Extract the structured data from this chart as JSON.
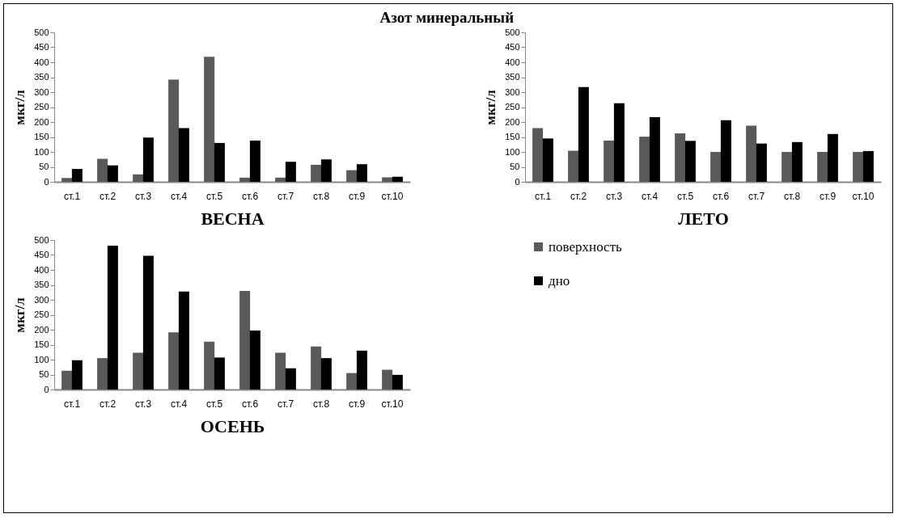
{
  "chart_data": [
    {
      "type": "bar",
      "title": "Азот минеральный",
      "xlabel": "ВЕСНА",
      "ylabel": "мкг/л",
      "categories": [
        "ст.1",
        "ст.2",
        "ст.3",
        "ст.4",
        "ст.5",
        "ст.6",
        "ст.7",
        "ст.8",
        "ст.9",
        "ст.10"
      ],
      "ylim": [
        0,
        500
      ],
      "yticks": [
        0,
        50,
        100,
        150,
        200,
        250,
        300,
        350,
        400,
        450,
        500
      ],
      "grid": false,
      "legend": false,
      "series": [
        {
          "color": "#595959",
          "values": [
            13,
            77,
            25,
            342,
            418,
            14,
            14,
            57,
            39,
            15
          ]
        },
        {
          "color": "#000000",
          "values": [
            43,
            55,
            148,
            180,
            130,
            138,
            67,
            75,
            59,
            17
          ]
        }
      ]
    },
    {
      "type": "bar",
      "xlabel": "ЛЕТО",
      "ylabel": "мкг/л",
      "categories": [
        "ст.1",
        "ст.2",
        "ст.3",
        "ст.4",
        "ст.5",
        "ст.6",
        "ст.7",
        "ст.8",
        "ст.9",
        "ст.10"
      ],
      "ylim": [
        0,
        500
      ],
      "yticks": [
        0,
        50,
        100,
        150,
        200,
        250,
        300,
        350,
        400,
        450,
        500
      ],
      "grid": false,
      "legend": false,
      "series": [
        {
          "color": "#595959",
          "values": [
            180,
            104,
            138,
            151,
            162,
            100,
            188,
            100,
            100,
            100
          ]
        },
        {
          "color": "#000000",
          "values": [
            145,
            317,
            263,
            216,
            137,
            206,
            128,
            133,
            160,
            103
          ]
        }
      ]
    },
    {
      "type": "bar",
      "xlabel": "ОСЕНЬ",
      "ylabel": "мкг/л",
      "categories": [
        "ст.1",
        "ст.2",
        "ст.3",
        "ст.4",
        "ст.5",
        "ст.6",
        "ст.7",
        "ст.8",
        "ст.9",
        "ст.10"
      ],
      "ylim": [
        0,
        500
      ],
      "yticks": [
        0,
        50,
        100,
        150,
        200,
        250,
        300,
        350,
        400,
        450,
        500
      ],
      "grid": false,
      "legend": "right",
      "series": [
        {
          "name": "поверхность",
          "color": "#595959",
          "values": [
            63,
            105,
            123,
            191,
            160,
            330,
            123,
            144,
            55,
            66
          ]
        },
        {
          "name": "дно",
          "color": "#000000",
          "values": [
            98,
            481,
            447,
            328,
            107,
            197,
            71,
            105,
            130,
            49
          ]
        }
      ]
    }
  ]
}
